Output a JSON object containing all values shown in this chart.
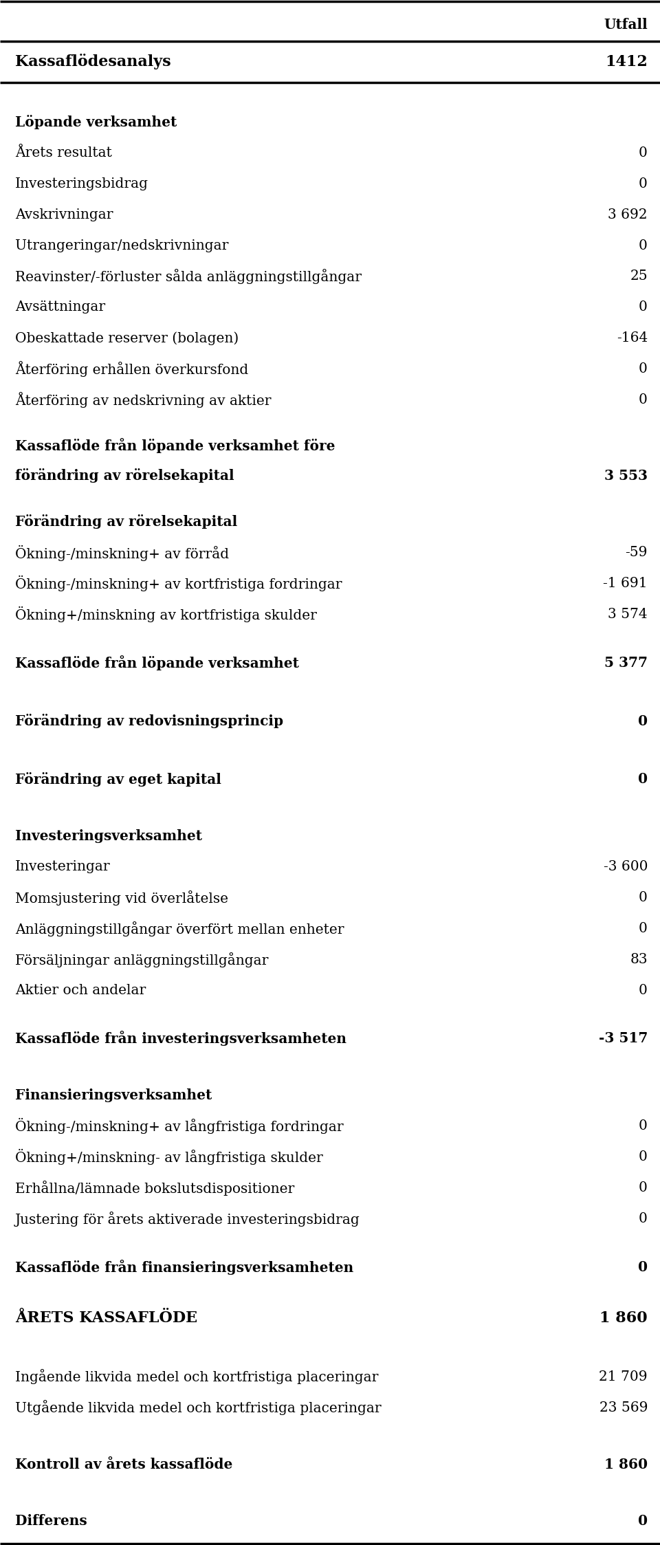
{
  "rows": [
    {
      "label": "Utfall",
      "value": "",
      "style": "col_header"
    },
    {
      "label": "Kassaflödesanalys",
      "value": "1412",
      "style": "header_bold"
    },
    {
      "label": "",
      "value": "",
      "style": "spacer_med"
    },
    {
      "label": "Löpande verksamhet",
      "value": "",
      "style": "section_bold"
    },
    {
      "label": "Årets resultat",
      "value": "0",
      "style": "normal"
    },
    {
      "label": "Investeringsbidrag",
      "value": "0",
      "style": "normal"
    },
    {
      "label": "Avskrivningar",
      "value": "3 692",
      "style": "normal"
    },
    {
      "label": "Utrangeringar/nedskrivningar",
      "value": "0",
      "style": "normal"
    },
    {
      "label": "Reavinster/-förluster sålda anläggningstillgångar",
      "value": "25",
      "style": "normal"
    },
    {
      "label": "Avsättningar",
      "value": "0",
      "style": "normal"
    },
    {
      "label": "Obeskattade reserver (bolagen)",
      "value": "-164",
      "style": "normal"
    },
    {
      "label": "Återföring erhållen överkursfond",
      "value": "0",
      "style": "normal"
    },
    {
      "label": "Återföring av nedskrivning av aktier",
      "value": "0",
      "style": "normal"
    },
    {
      "label": "",
      "value": "",
      "style": "spacer_small"
    },
    {
      "label": "Kassaflöde från löpande verksamhet före",
      "value": "",
      "style": "summary_bold_line1"
    },
    {
      "label": "förändring av rörelsekapital",
      "value": "3 553",
      "style": "summary_bold_line2"
    },
    {
      "label": "",
      "value": "",
      "style": "spacer_small"
    },
    {
      "label": "Förändring av rörelsekapital",
      "value": "",
      "style": "section_bold"
    },
    {
      "label": "Ökning-/minskning+ av förråd",
      "value": "-59",
      "style": "normal"
    },
    {
      "label": "Ökning-/minskning+ av kortfristiga fordringar",
      "value": "-1 691",
      "style": "normal"
    },
    {
      "label": "Ökning+/minskning av kortfristiga skulder",
      "value": "3 574",
      "style": "normal"
    },
    {
      "label": "",
      "value": "",
      "style": "spacer_small"
    },
    {
      "label": "Kassaflöde från löpande verksamhet",
      "value": "5 377",
      "style": "summary_bold"
    },
    {
      "label": "",
      "value": "",
      "style": "spacer_med"
    },
    {
      "label": "Förändring av redovisningsprincip",
      "value": "0",
      "style": "summary_bold"
    },
    {
      "label": "",
      "value": "",
      "style": "spacer_med"
    },
    {
      "label": "Förändring av eget kapital",
      "value": "0",
      "style": "summary_bold"
    },
    {
      "label": "",
      "value": "",
      "style": "spacer_med"
    },
    {
      "label": "Investeringsverksamhet",
      "value": "",
      "style": "section_bold"
    },
    {
      "label": "Investeringar",
      "value": "-3 600",
      "style": "normal"
    },
    {
      "label": "Momsjustering vid överlåtelse",
      "value": "0",
      "style": "normal"
    },
    {
      "label": "Anläggningstillgångar överfört mellan enheter",
      "value": "0",
      "style": "normal"
    },
    {
      "label": "Försäljningar anläggningstillgångar",
      "value": "83",
      "style": "normal"
    },
    {
      "label": "Aktier och andelar",
      "value": "0",
      "style": "normal"
    },
    {
      "label": "",
      "value": "",
      "style": "spacer_small"
    },
    {
      "label": "Kassaflöde från investeringsverksamheten",
      "value": "-3 517",
      "style": "summary_bold"
    },
    {
      "label": "",
      "value": "",
      "style": "spacer_med"
    },
    {
      "label": "Finansieringsverksamhet",
      "value": "",
      "style": "section_bold"
    },
    {
      "label": "Ökning-/minskning+ av långfristiga fordringar",
      "value": "0",
      "style": "normal"
    },
    {
      "label": "Ökning+/minskning- av långfristiga skulder",
      "value": "0",
      "style": "normal"
    },
    {
      "label": "Erhållna/lämnade bokslutsdispositioner",
      "value": "0",
      "style": "normal"
    },
    {
      "label": "Justering för årets aktiverade investeringsbidrag",
      "value": "0",
      "style": "normal"
    },
    {
      "label": "",
      "value": "",
      "style": "spacer_small"
    },
    {
      "label": "Kassaflöde från finansieringsverksamheten",
      "value": "0",
      "style": "summary_bold"
    },
    {
      "label": "",
      "value": "",
      "style": "spacer_small"
    },
    {
      "label": "ÅRETS KASSAFLÖDE",
      "value": "1 860",
      "style": "big_bold"
    },
    {
      "label": "",
      "value": "",
      "style": "spacer_med"
    },
    {
      "label": "Ingående likvida medel och kortfristiga placeringar",
      "value": "21 709",
      "style": "normal"
    },
    {
      "label": "Utgående likvida medel och kortfristiga placeringar",
      "value": "23 569",
      "style": "normal"
    },
    {
      "label": "",
      "value": "",
      "style": "spacer_med"
    },
    {
      "label": "Kontroll av årets kassaflöde",
      "value": "1 860",
      "style": "summary_bold"
    },
    {
      "label": "",
      "value": "",
      "style": "spacer_med"
    },
    {
      "label": "Differens",
      "value": "0",
      "style": "normal_bold"
    }
  ],
  "bg_color": "#ffffff",
  "text_color": "#000000",
  "border_color": "#000000",
  "outer_border_top": true,
  "outer_border_bottom": true
}
